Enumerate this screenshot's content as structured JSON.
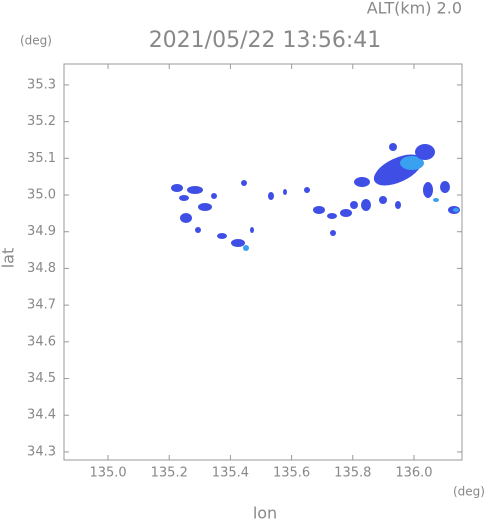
{
  "chart_data": {
    "type": "map",
    "title": "2021/05/22 13:56:41",
    "altitude_label": "ALT(km) 2.0",
    "x_label": "lon",
    "y_label": "lat",
    "x_unit": "(deg)",
    "y_unit": "(deg)",
    "xlim": [
      134.856,
      136.157
    ],
    "ylim": [
      34.278,
      35.357
    ],
    "xticks": [
      {
        "value": 135,
        "label": "135.0"
      },
      135.2,
      135.4,
      135.6,
      135.8,
      {
        "value": 136,
        "label": "136.0"
      }
    ],
    "yticks": [
      34.3,
      34.4,
      34.5,
      34.6,
      34.7,
      34.8,
      34.9,
      {
        "value": 35,
        "label": "35.0"
      },
      35.1,
      35.2,
      35.3
    ]
  }
}
